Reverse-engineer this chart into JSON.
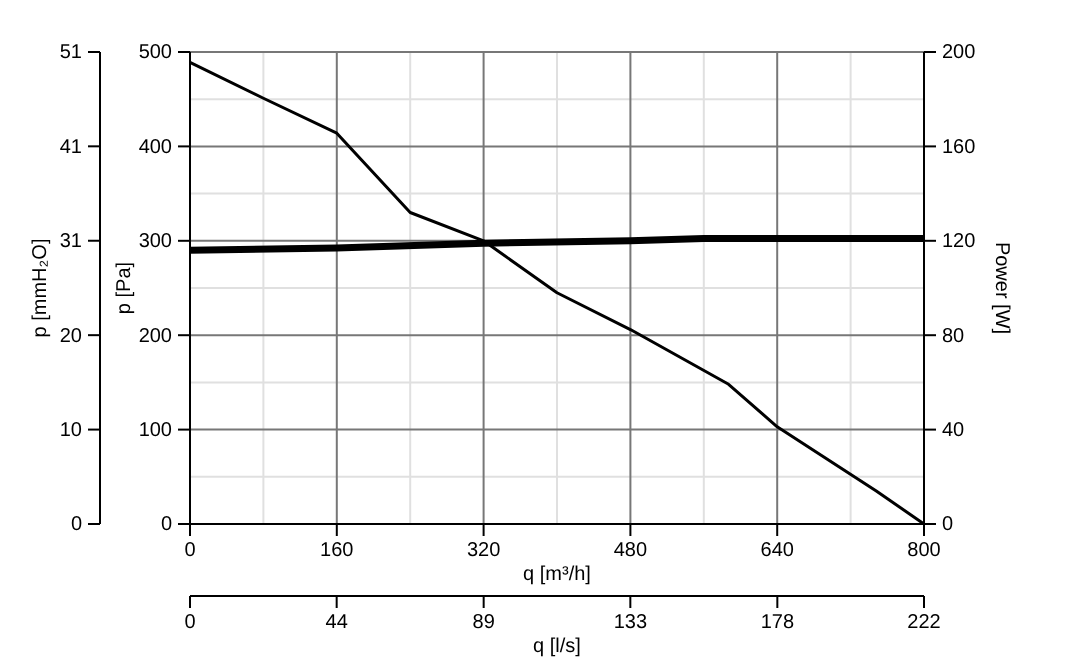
{
  "chart_data": {
    "type": "line",
    "xlabel": "q [m³/h]",
    "ylabel": "p [Pa]",
    "y2label": "Power [W]",
    "y3label": "p [mmH₂O]",
    "x2label": "q [l/s]",
    "xlim": [
      0,
      800
    ],
    "xticks": [
      0,
      160,
      320,
      480,
      640,
      800
    ],
    "ylim": [
      0,
      500
    ],
    "yticks": [
      0,
      100,
      200,
      300,
      400,
      500
    ],
    "y2lim": [
      0,
      200
    ],
    "y2ticks": [
      0,
      40,
      80,
      120,
      160,
      200
    ],
    "y3lim": [
      0,
      50.99
    ],
    "y3ticks": [
      0,
      {
        "value": 10.2,
        "label": "10"
      },
      {
        "value": 20.4,
        "label": "20"
      },
      {
        "value": 30.6,
        "label": "31"
      },
      {
        "value": 40.8,
        "label": "41"
      },
      {
        "value": 50.99,
        "label": "51"
      }
    ],
    "x2lim": [
      0,
      222.2
    ],
    "x2ticks": [
      0,
      {
        "value": 44.4,
        "label": "44"
      },
      {
        "value": 88.9,
        "label": "89"
      },
      {
        "value": 133.3,
        "label": "133"
      },
      {
        "value": 177.8,
        "label": "178"
      },
      {
        "value": 222.2,
        "label": "222"
      }
    ],
    "grid": true,
    "line_style": "solid",
    "series": [
      {
        "color": "#000000",
        "x": [
          0,
          80,
          160,
          240,
          320,
          400,
          480,
          587,
          640,
          748,
          800
        ],
        "values": [
          489,
          451,
          414,
          330,
          300,
          245,
          206,
          148,
          103,
          35,
          0
        ]
      },
      {
        "color": "#000000",
        "axis": "y2",
        "x": [
          0,
          160,
          320,
          480,
          560,
          800
        ],
        "values": [
          116,
          117,
          119,
          120,
          121,
          121
        ]
      }
    ]
  }
}
